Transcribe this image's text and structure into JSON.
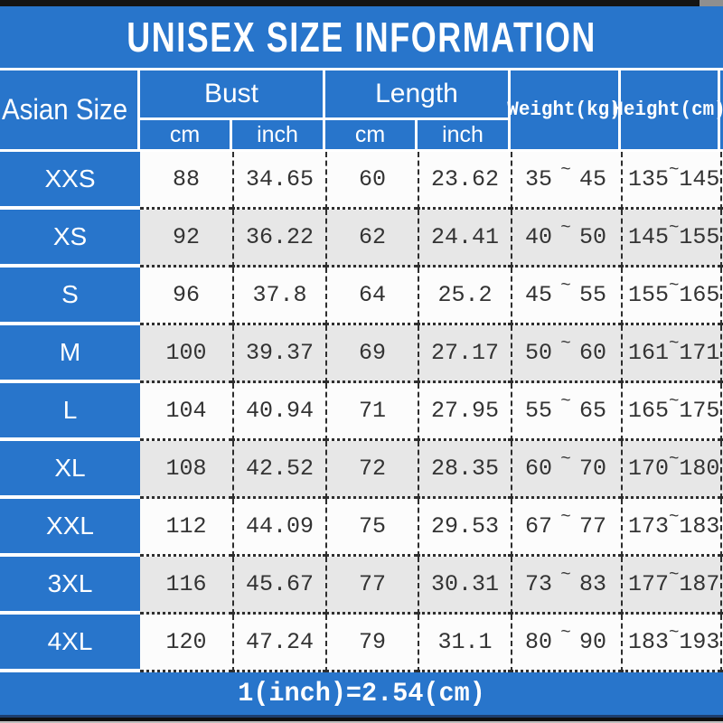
{
  "title": "UNISEX SIZE INFORMATION",
  "footer_note": "1(inch)=2.54(cm)",
  "colors": {
    "blue": "#2875CB",
    "row_white": "#FCFCFC",
    "row_gray": "#E7E7E7",
    "bar_black": "#141414",
    "navy_line": "#1C3E6E",
    "text_dark": "#333333",
    "white": "#FFFFFF"
  },
  "table": {
    "corner_header": "Asian Size",
    "group_headers": [
      {
        "label": "Bust",
        "sub": [
          "cm",
          "inch"
        ]
      },
      {
        "label": "Length",
        "sub": [
          "cm",
          "inch"
        ]
      }
    ],
    "single_headers": [
      "Weight(kg)",
      "Height(cm)"
    ],
    "range_separator": "~",
    "rows": [
      {
        "size": "XXS",
        "bust_cm": "88",
        "bust_inch": "34.65",
        "length_cm": "60",
        "length_inch": "23.62",
        "weight_min": "35",
        "weight_max": "45",
        "height_min": "135",
        "height_max": "145"
      },
      {
        "size": "XS",
        "bust_cm": "92",
        "bust_inch": "36.22",
        "length_cm": "62",
        "length_inch": "24.41",
        "weight_min": "40",
        "weight_max": "50",
        "height_min": "145",
        "height_max": "155"
      },
      {
        "size": "S",
        "bust_cm": "96",
        "bust_inch": "37.8",
        "length_cm": "64",
        "length_inch": "25.2",
        "weight_min": "45",
        "weight_max": "55",
        "height_min": "155",
        "height_max": "165"
      },
      {
        "size": "M",
        "bust_cm": "100",
        "bust_inch": "39.37",
        "length_cm": "69",
        "length_inch": "27.17",
        "weight_min": "50",
        "weight_max": "60",
        "height_min": "161",
        "height_max": "171"
      },
      {
        "size": "L",
        "bust_cm": "104",
        "bust_inch": "40.94",
        "length_cm": "71",
        "length_inch": "27.95",
        "weight_min": "55",
        "weight_max": "65",
        "height_min": "165",
        "height_max": "175"
      },
      {
        "size": "XL",
        "bust_cm": "108",
        "bust_inch": "42.52",
        "length_cm": "72",
        "length_inch": "28.35",
        "weight_min": "60",
        "weight_max": "70",
        "height_min": "170",
        "height_max": "180"
      },
      {
        "size": "XXL",
        "bust_cm": "112",
        "bust_inch": "44.09",
        "length_cm": "75",
        "length_inch": "29.53",
        "weight_min": "67",
        "weight_max": "77",
        "height_min": "173",
        "height_max": "183"
      },
      {
        "size": "3XL",
        "bust_cm": "116",
        "bust_inch": "45.67",
        "length_cm": "77",
        "length_inch": "30.31",
        "weight_min": "73",
        "weight_max": "83",
        "height_min": "177",
        "height_max": "187"
      },
      {
        "size": "4XL",
        "bust_cm": "120",
        "bust_inch": "47.24",
        "length_cm": "79",
        "length_inch": "31.1",
        "weight_min": "80",
        "weight_max": "90",
        "height_min": "183",
        "height_max": "193"
      }
    ]
  },
  "chart_data": {
    "type": "table",
    "title": "UNISEX SIZE INFORMATION",
    "columns": [
      "Asian Size",
      "Bust cm",
      "Bust inch",
      "Length cm",
      "Length inch",
      "Weight(kg)",
      "Height(cm)"
    ],
    "rows": [
      [
        "XXS",
        "88",
        "34.65",
        "60",
        "23.62",
        "35~45",
        "135~145"
      ],
      [
        "XS",
        "92",
        "36.22",
        "62",
        "24.41",
        "40~50",
        "145~155"
      ],
      [
        "S",
        "96",
        "37.8",
        "64",
        "25.2",
        "45~55",
        "155~165"
      ],
      [
        "M",
        "100",
        "39.37",
        "69",
        "27.17",
        "50~60",
        "161~171"
      ],
      [
        "L",
        "104",
        "40.94",
        "71",
        "27.95",
        "55~65",
        "165~175"
      ],
      [
        "XL",
        "108",
        "42.52",
        "72",
        "28.35",
        "60~70",
        "170~180"
      ],
      [
        "XXL",
        "112",
        "44.09",
        "75",
        "29.53",
        "67~77",
        "173~183"
      ],
      [
        "3XL",
        "116",
        "45.67",
        "77",
        "30.31",
        "73~83",
        "177~187"
      ],
      [
        "4XL",
        "120",
        "47.24",
        "79",
        "31.1",
        "80~90",
        "183~193"
      ]
    ],
    "footnote": "1(inch)=2.54(cm)"
  }
}
